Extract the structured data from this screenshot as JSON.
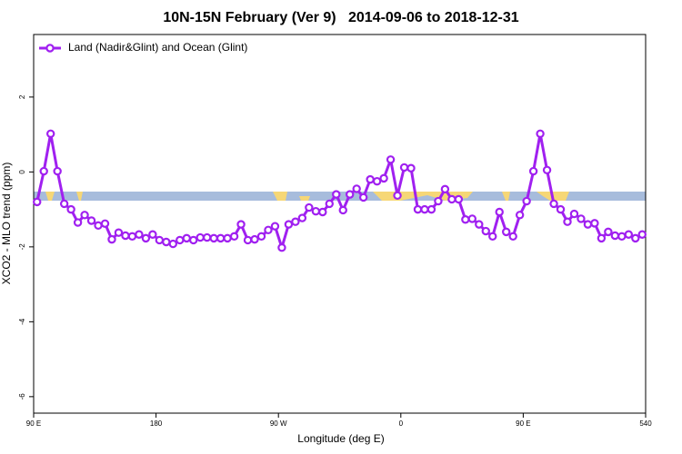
{
  "chart_data": {
    "type": "line",
    "title": "10N-15N February (Ver 9)   2014-09-06 to 2018-12-31",
    "x_label": "Longitude (deg E)",
    "y_label": "XCO2 - MLO trend (ppm)",
    "xlim": [
      90,
      540
    ],
    "ylim": [
      -6.44,
      3.67
    ],
    "xticks": [
      {
        "value": 90,
        "label": "90 E"
      },
      180,
      {
        "value": 270,
        "label": "90 W"
      },
      {
        "value": 360,
        "label": "0"
      },
      {
        "value": 450,
        "label": "90 E"
      },
      540
    ],
    "yticks": [
      -6,
      -4,
      -2,
      0,
      2
    ],
    "legend": "top-left",
    "x": [
      92.5,
      97.5,
      102.5,
      107.5,
      112.5,
      117.5,
      122.5,
      127.5,
      132.5,
      137.5,
      142.5,
      147.5,
      152.5,
      157.5,
      162.5,
      167.5,
      172.5,
      177.5,
      182.5,
      187.5,
      192.5,
      197.5,
      202.5,
      207.5,
      212.5,
      217.5,
      222.5,
      227.5,
      232.5,
      237.5,
      242.5,
      247.5,
      252.5,
      257.5,
      262.5,
      267.5,
      272.5,
      277.5,
      282.5,
      287.5,
      292.5,
      297.5,
      302.5,
      307.5,
      312.5,
      317.5,
      322.5,
      327.5,
      332.5,
      337.5,
      342.5,
      347.5,
      352.5,
      357.5,
      362.5,
      367.5,
      372.5,
      377.5,
      382.5,
      387.5,
      392.5,
      397.5,
      402.5,
      407.5,
      412.5,
      417.5,
      422.5,
      427.5,
      432.5,
      437.5,
      442.5,
      447.5,
      452.5,
      457.5,
      462.5,
      467.5,
      472.5,
      477.5,
      482.5,
      487.5,
      492.5,
      497.5,
      502.5,
      507.5,
      512.5,
      517.5,
      522.5,
      527.5,
      532.5,
      537.5
    ],
    "series": [
      {
        "name": "Land (Nadir&Glint) and Ocean (Glint)",
        "color": "#a020f0",
        "values": [
          -0.8,
          0.02,
          1.02,
          0.02,
          -0.85,
          -1.0,
          -1.35,
          -1.15,
          -1.3,
          -1.43,
          -1.38,
          -1.8,
          -1.62,
          -1.7,
          -1.72,
          -1.67,
          -1.77,
          -1.67,
          -1.82,
          -1.87,
          -1.92,
          -1.82,
          -1.77,
          -1.82,
          -1.75,
          -1.75,
          -1.77,
          -1.77,
          -1.77,
          -1.72,
          -1.4,
          -1.82,
          -1.8,
          -1.72,
          -1.55,
          -1.45,
          -2.02,
          -1.4,
          -1.33,
          -1.23,
          -0.95,
          -1.05,
          -1.07,
          -0.85,
          -0.6,
          -1.02,
          -0.6,
          -0.45,
          -0.68,
          -0.2,
          -0.25,
          -0.17,
          0.33,
          -0.63,
          0.12,
          0.1,
          -1.0,
          -1.0,
          -1.0,
          -0.78,
          -0.46,
          -0.73,
          -0.73,
          -1.27,
          -1.25,
          -1.4,
          -1.58,
          -1.72,
          -1.07,
          -1.6,
          -1.72,
          -1.15,
          -0.78,
          0.02,
          1.02,
          0.05,
          -0.85,
          -1.0,
          -1.33,
          -1.12,
          -1.25,
          -1.4,
          -1.37,
          -1.77,
          -1.6,
          -1.7,
          -1.72,
          -1.67,
          -1.77,
          -1.67
        ]
      }
    ]
  }
}
